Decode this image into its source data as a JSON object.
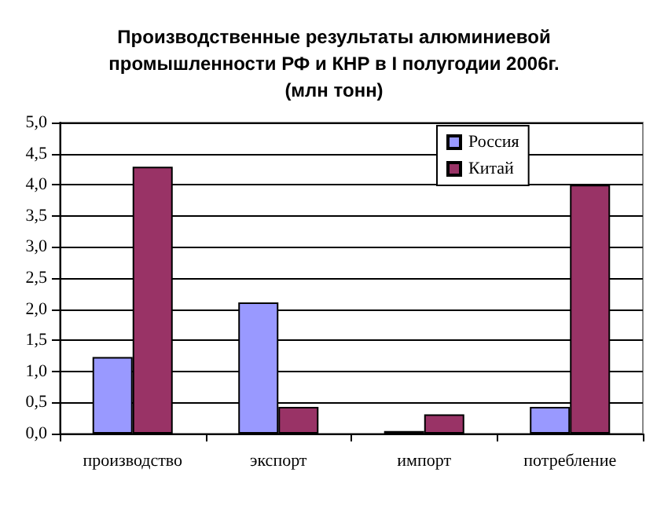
{
  "chart_data": {
    "type": "bar",
    "title": "Производственные результаты алюминиевой\nпромышленности РФ и КНР в I полугодии 2006г.\n(млн тонн)",
    "categories": [
      "производство",
      "экспорт",
      "импорт",
      "потребление"
    ],
    "series": [
      {
        "name": "Россия",
        "color": "#9999ff",
        "values": [
          1.23,
          2.11,
          0.04,
          0.43
        ]
      },
      {
        "name": "Китай",
        "color": "#993366",
        "values": [
          4.29,
          0.43,
          0.31,
          4.0
        ]
      }
    ],
    "ylim": [
      0,
      5
    ],
    "yticks": [
      {
        "value": 0,
        "label": "0,0"
      },
      {
        "value": 0.5,
        "label": "0,5"
      },
      {
        "value": 1,
        "label": "1,0"
      },
      {
        "value": 1.5,
        "label": "1,5"
      },
      {
        "value": 2,
        "label": "2,0"
      },
      {
        "value": 2.5,
        "label": "2,5"
      },
      {
        "value": 3,
        "label": "3,0"
      },
      {
        "value": 3.5,
        "label": "3,5"
      },
      {
        "value": 4,
        "label": "4,0"
      },
      {
        "value": 4.5,
        "label": "4,5"
      },
      {
        "value": 5,
        "label": "5,0"
      }
    ],
    "grid": "y",
    "legend": "top right"
  }
}
